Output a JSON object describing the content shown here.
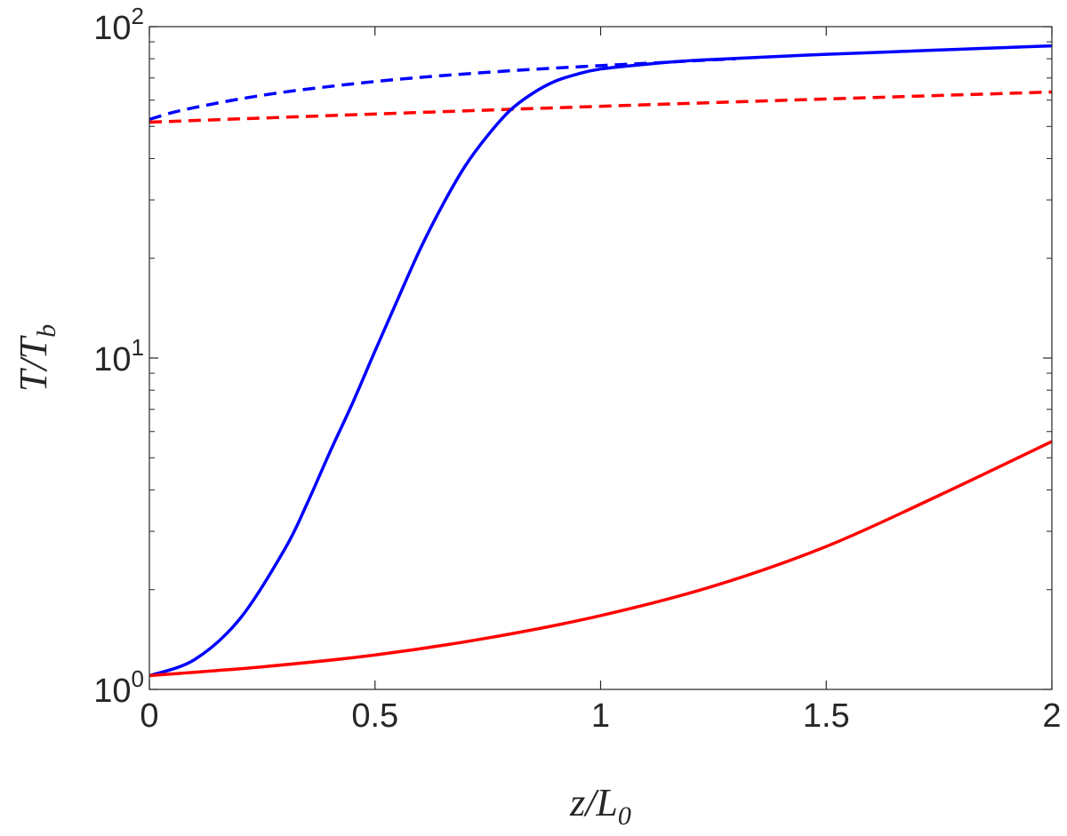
{
  "chart_data": {
    "type": "line",
    "title": "",
    "xlabel": "z/L0",
    "ylabel": "T/Tb",
    "xlim": [
      0,
      2
    ],
    "ylim": [
      1,
      100
    ],
    "yscale": "log",
    "grid": false,
    "legend": "none",
    "x_ticks": [
      0,
      0.5,
      1,
      1.5,
      2
    ],
    "x_tick_labels": [
      "0",
      "0.5",
      "1",
      "1.5",
      "2"
    ],
    "y_ticks": [
      1,
      10,
      100
    ],
    "y_tick_labels": [
      {
        "base": "10",
        "exp": "0"
      },
      {
        "base": "10",
        "exp": "1"
      },
      {
        "base": "10",
        "exp": "2"
      }
    ],
    "series": [
      {
        "color": "#0000ff",
        "style": "solid",
        "x": [
          0,
          0.1,
          0.2,
          0.3,
          0.35,
          0.4,
          0.45,
          0.5,
          0.55,
          0.6,
          0.65,
          0.7,
          0.75,
          0.8,
          0.85,
          0.9,
          0.95,
          1.0,
          1.1,
          1.2,
          1.3,
          1.4,
          1.5,
          1.6,
          1.7,
          1.8,
          1.9,
          2.0
        ],
        "y": [
          1.1,
          1.23,
          1.63,
          2.65,
          3.65,
          5.2,
          7.3,
          10.5,
          15.0,
          21.3,
          29.0,
          38.0,
          47.0,
          56.0,
          63.0,
          68.5,
          72.0,
          74.5,
          77.0,
          79.0,
          80.2,
          81.4,
          82.5,
          83.5,
          84.5,
          85.5,
          86.5,
          87.5
        ]
      },
      {
        "color": "#ff0000",
        "style": "solid",
        "x": [
          0,
          0.25,
          0.5,
          0.75,
          1.0,
          1.25,
          1.5,
          1.75,
          2.0
        ],
        "y": [
          1.1,
          1.17,
          1.27,
          1.43,
          1.67,
          2.05,
          2.7,
          3.85,
          5.6
        ]
      },
      {
        "color": "#0000ff",
        "style": "dashed",
        "x": [
          0,
          0.05,
          0.1,
          0.2,
          0.3,
          0.4,
          0.5,
          0.6,
          0.7,
          0.8,
          0.9,
          1.0,
          1.1,
          1.2,
          1.3
        ],
        "y": [
          52.5,
          55.0,
          57.0,
          60.5,
          63.5,
          66.0,
          68.3,
          70.3,
          72.0,
          73.6,
          75.0,
          76.3,
          77.5,
          78.8,
          80.0
        ]
      },
      {
        "color": "#ff0000",
        "style": "dashed",
        "x": [
          0,
          0.5,
          1.0,
          1.5,
          2.0
        ],
        "y": [
          51.5,
          54.5,
          57.5,
          60.5,
          63.5
        ]
      }
    ]
  }
}
